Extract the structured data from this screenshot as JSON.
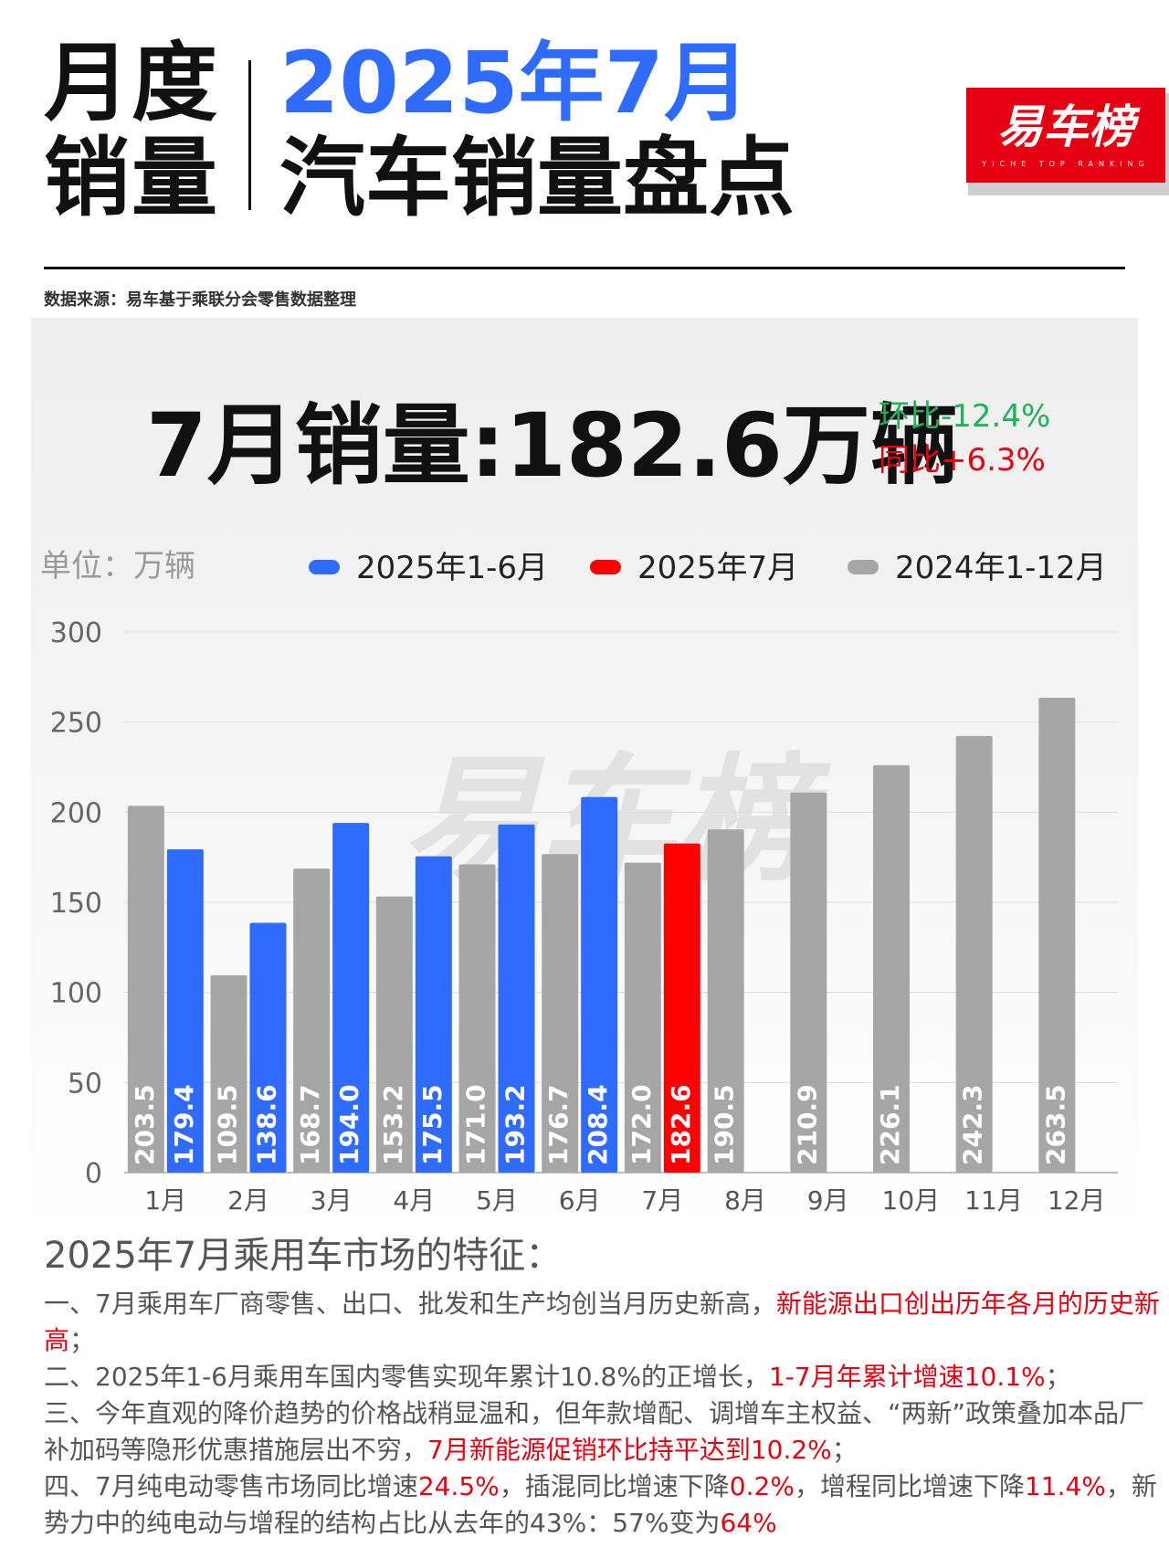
{
  "header": {
    "left_line1": "月度",
    "left_line2": "销量",
    "title_line1": "2025年7月",
    "title_line2": "汽车销量盘点"
  },
  "logo": {
    "name": "易车榜",
    "subtitle": "YICHE TOP RANKING"
  },
  "source": "数据来源：易车基于乘联分会零售数据整理",
  "headline": {
    "title": "7月销量:182.6万辆",
    "mom": "环比-12.4%",
    "yoy": "同比+6.3%"
  },
  "unit_label": "单位：万辆",
  "watermark": "易车榜",
  "colors": {
    "blue": "#2f6bff",
    "red": "#ff0000",
    "gray": "#a6a6a6",
    "mom_green": "#1fb35c",
    "yoy_red": "#e60012"
  },
  "chart_data": {
    "type": "bar",
    "categories": [
      "1月",
      "2月",
      "3月",
      "4月",
      "5月",
      "6月",
      "7月",
      "8月",
      "9月",
      "10月",
      "11月",
      "12月"
    ],
    "series": [
      {
        "name": "2024年1-12月",
        "color": "gray",
        "values": [
          203.5,
          109.5,
          168.7,
          153.2,
          171.0,
          176.7,
          172.0,
          190.5,
          210.9,
          226.1,
          242.3,
          263.5
        ]
      },
      {
        "name": "2025年1-6月",
        "color": "blue",
        "values": [
          179.4,
          138.6,
          194.0,
          175.5,
          193.2,
          208.4,
          null,
          null,
          null,
          null,
          null,
          null
        ]
      },
      {
        "name": "2025年7月",
        "color": "red",
        "values": [
          null,
          null,
          null,
          null,
          null,
          null,
          182.6,
          null,
          null,
          null,
          null,
          null
        ]
      }
    ],
    "legend_order": [
      "2025年1-6月",
      "2025年7月",
      "2024年1-12月"
    ],
    "legend_position": "top",
    "ylim": [
      0,
      300
    ],
    "yticks": [
      0,
      50,
      100,
      150,
      200,
      250,
      300
    ],
    "grid": true,
    "value_labels": "vertical-inside-bottom"
  },
  "features": {
    "title": "2025年7月乘用车市场的特征：",
    "items": [
      [
        {
          "t": "一、7月乘用车厂商零售、出口、批发和生产均创当月历史新高，",
          "red": false
        },
        {
          "t": "新能源出口创出历年各月的历史新高",
          "red": true
        },
        {
          "t": "；",
          "red": false
        }
      ],
      [
        {
          "t": "二、2025年1-6月乘用车国内零售实现年累计10.8%的正增长，",
          "red": false
        },
        {
          "t": "1-7月年累计增速10.1%",
          "red": true
        },
        {
          "t": "；",
          "red": false
        }
      ],
      [
        {
          "t": "三、今年直观的降价趋势的价格战稍显温和，但年款增配、调增车主权益、“两新”政策叠加本品厂补加码等隐形优惠措施层出不穷，",
          "red": false
        },
        {
          "t": "7月新能源促销环比持平达到10.2%",
          "red": true
        },
        {
          "t": "；",
          "red": false
        }
      ],
      [
        {
          "t": "四、7月纯电动零售市场同比增速",
          "red": false
        },
        {
          "t": "24.5%",
          "red": true
        },
        {
          "t": "，插混同比增速下降",
          "red": false
        },
        {
          "t": "0.2%",
          "red": true
        },
        {
          "t": "，增程同比增速下降",
          "red": false
        },
        {
          "t": "11.4%",
          "red": true
        },
        {
          "t": "，新势力中的纯电动与增程的结构占比从去年的43%：57%变为",
          "red": false
        },
        {
          "t": "64%",
          "red": true
        }
      ]
    ]
  }
}
